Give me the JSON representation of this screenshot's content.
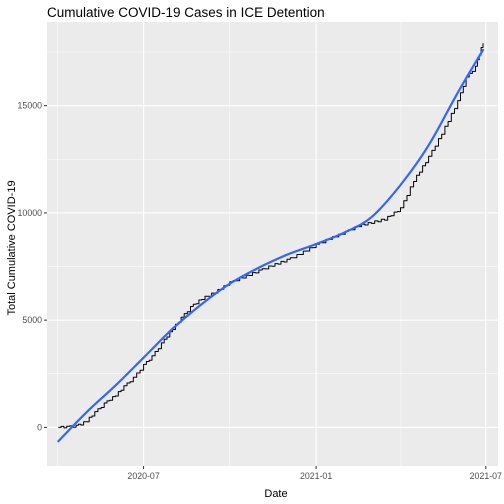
{
  "chart_data": {
    "type": "line",
    "title": "Cumulative COVID-19 Cases in ICE Detention",
    "xlabel": "Date",
    "ylabel": "Total Cumulative COVID-19",
    "x_ticks": [
      "2020-07",
      "2021-01",
      "2021-07"
    ],
    "y_ticks": [
      0,
      5000,
      10000,
      15000
    ],
    "xlim": [
      "2020-03-20",
      "2021-07-14"
    ],
    "ylim": [
      -1800,
      18900
    ],
    "grid": true,
    "legend": "none",
    "background_color": "#ebebeb",
    "grid_color": "#ffffff",
    "series": [
      {
        "style": "step-line",
        "color": "#000000",
        "x": [
          "2020-04-01",
          "2020-04-10",
          "2020-04-20",
          "2020-04-25",
          "2020-05-01",
          "2020-05-10",
          "2020-05-20",
          "2020-06-01",
          "2020-06-10",
          "2020-06-20",
          "2020-07-01",
          "2020-07-10",
          "2020-07-20",
          "2020-08-01",
          "2020-08-10",
          "2020-08-20",
          "2020-09-01",
          "2020-09-15",
          "2020-10-01",
          "2020-10-15",
          "2020-11-01",
          "2020-11-15",
          "2020-12-01",
          "2020-12-15",
          "2021-01-01",
          "2021-01-15",
          "2021-02-01",
          "2021-02-15",
          "2021-03-01",
          "2021-03-15",
          "2021-04-01",
          "2021-04-15",
          "2021-05-01",
          "2021-05-15",
          "2021-06-01",
          "2021-06-10",
          "2021-06-20",
          "2021-06-24",
          "2021-06-28"
        ],
        "values": [
          0,
          20,
          60,
          150,
          300,
          700,
          1100,
          1500,
          1900,
          2300,
          2900,
          3300,
          3900,
          4600,
          5100,
          5600,
          6000,
          6300,
          6750,
          7000,
          7300,
          7550,
          7800,
          8100,
          8500,
          8800,
          9100,
          9400,
          9550,
          9700,
          10200,
          11500,
          12600,
          13700,
          15200,
          16300,
          16800,
          17400,
          17950
        ]
      },
      {
        "style": "smooth-fit",
        "color": "#3366ff",
        "x": [
          "2020-04-01",
          "2020-05-01",
          "2020-06-01",
          "2020-07-01",
          "2020-08-01",
          "2020-09-01",
          "2020-10-01",
          "2020-11-01",
          "2020-12-01",
          "2021-01-01",
          "2021-02-01",
          "2021-03-01",
          "2021-04-01",
          "2021-05-01",
          "2021-06-01",
          "2021-06-28"
        ],
        "values": [
          -650,
          700,
          1950,
          3250,
          4600,
          5750,
          6700,
          7450,
          8050,
          8550,
          9100,
          9800,
          11300,
          13150,
          15600,
          17600
        ]
      }
    ]
  }
}
